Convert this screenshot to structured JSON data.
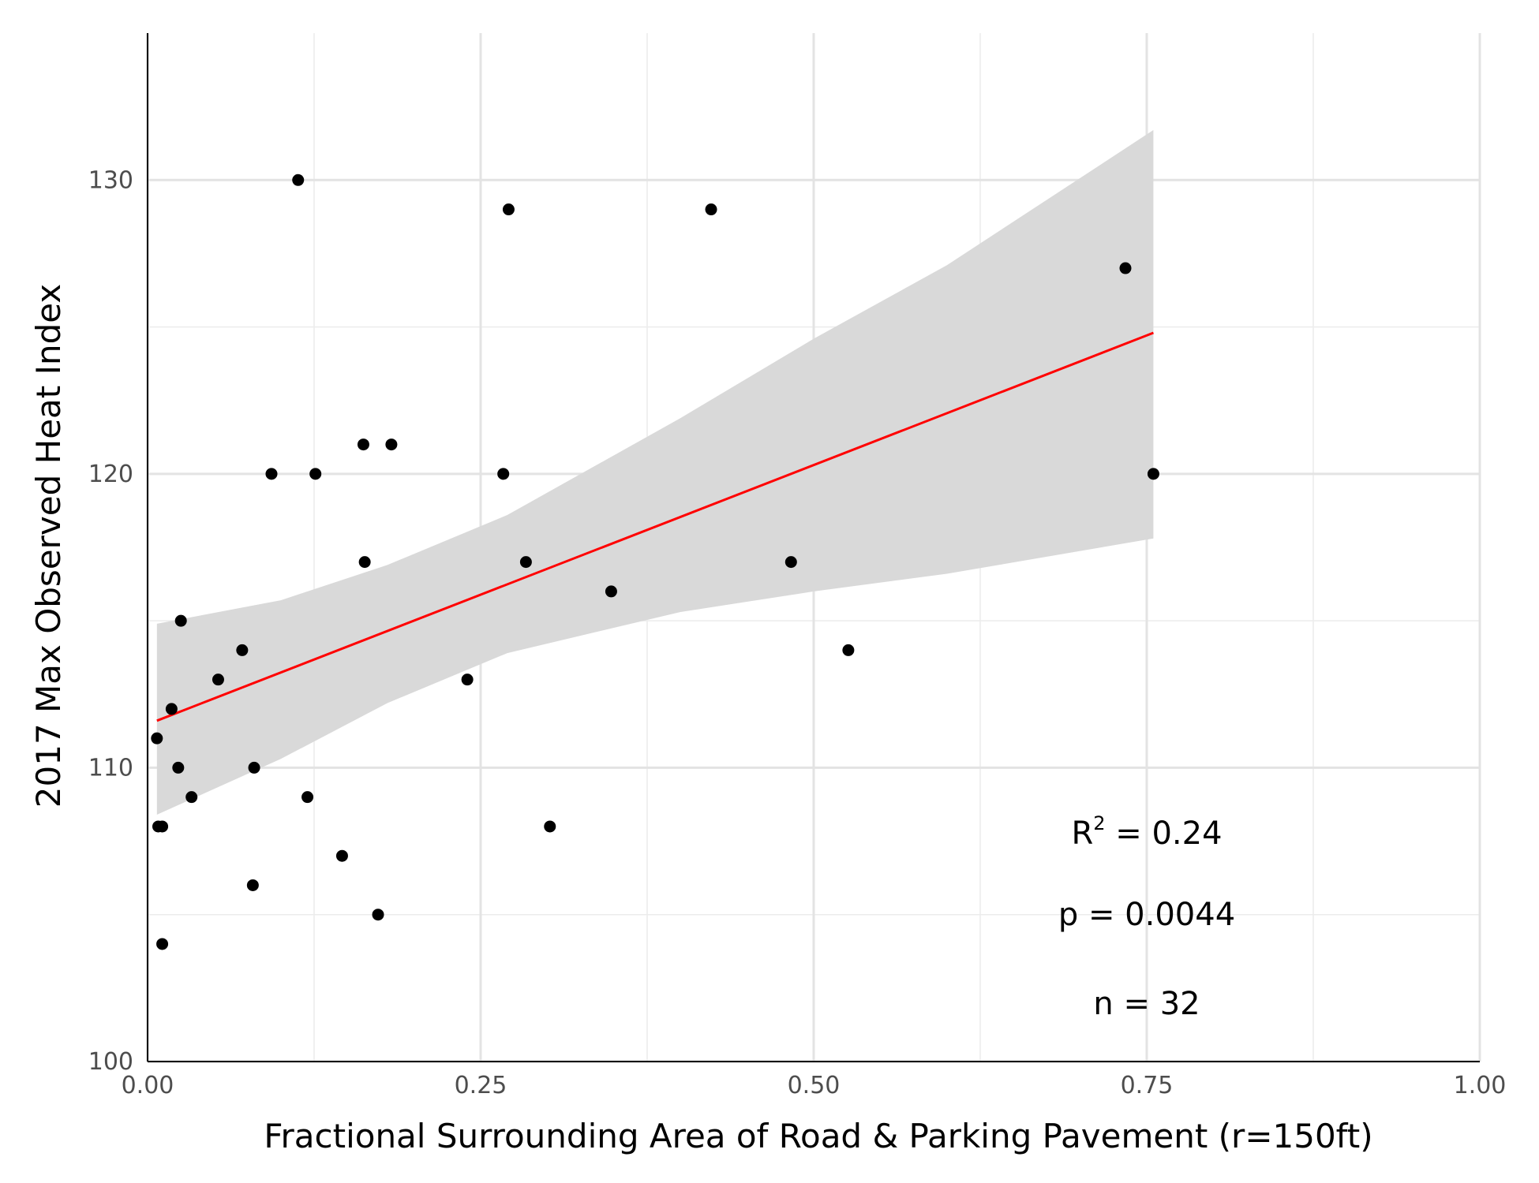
{
  "chart_data": {
    "type": "scatter",
    "title": "",
    "xlabel": "Fractional Surrounding Area of Road & Parking Pavement (r=150ft)",
    "ylabel": "2017 Max Observed Heat Index",
    "xlim": [
      0,
      1
    ],
    "ylim": [
      100,
      135
    ],
    "x_ticks": [
      0.0,
      0.25,
      0.5,
      0.75,
      1.0
    ],
    "x_tick_labels": [
      "0.00",
      "0.25",
      "0.50",
      "0.75",
      "1.00"
    ],
    "x_minor_ticks": [
      0.125,
      0.375,
      0.625,
      0.875
    ],
    "y_ticks": [
      100,
      110,
      120,
      130
    ],
    "y_tick_labels": [
      "100",
      "110",
      "120",
      "130"
    ],
    "y_minor_ticks": [
      105,
      115,
      125
    ],
    "grid": true,
    "point_color": "#000000",
    "series": [
      {
        "x": [
          0.113,
          0.271,
          0.423,
          0.734,
          0.162,
          0.183,
          0.093,
          0.126,
          0.267,
          0.755,
          0.163,
          0.284,
          0.483,
          0.348,
          0.025,
          0.071,
          0.526,
          0.053,
          0.24,
          0.018,
          0.007,
          0.023,
          0.08,
          0.033,
          0.12,
          0.008,
          0.011,
          0.302,
          0.146,
          0.079,
          0.173,
          0.011
        ],
        "y": [
          130,
          129,
          129,
          127,
          121,
          121,
          120,
          120,
          120,
          120,
          117,
          117,
          117,
          116,
          115,
          114,
          114,
          113,
          113,
          112,
          111,
          110,
          110,
          109,
          109,
          108,
          108,
          108,
          107,
          106,
          105,
          104
        ]
      }
    ],
    "fit_line": {
      "color": "#ff0000",
      "x": [
        0.007,
        0.755
      ],
      "y": [
        111.6,
        124.8
      ]
    },
    "confidence_band": {
      "color": "#d9d9d9",
      "x": [
        0.007,
        0.1,
        0.18,
        0.27,
        0.4,
        0.5,
        0.6,
        0.755
      ],
      "lower": [
        108.4,
        110.3,
        112.2,
        113.9,
        115.3,
        116.0,
        116.6,
        117.8
      ],
      "upper": [
        114.9,
        115.7,
        116.9,
        118.6,
        121.9,
        124.6,
        127.1,
        131.7
      ]
    }
  },
  "annotations": {
    "r2_symbol": "R",
    "r2_sup": "2",
    "r2_rest": " = 0.24",
    "p_value": "p = 0.0044",
    "n": "n = 32"
  }
}
